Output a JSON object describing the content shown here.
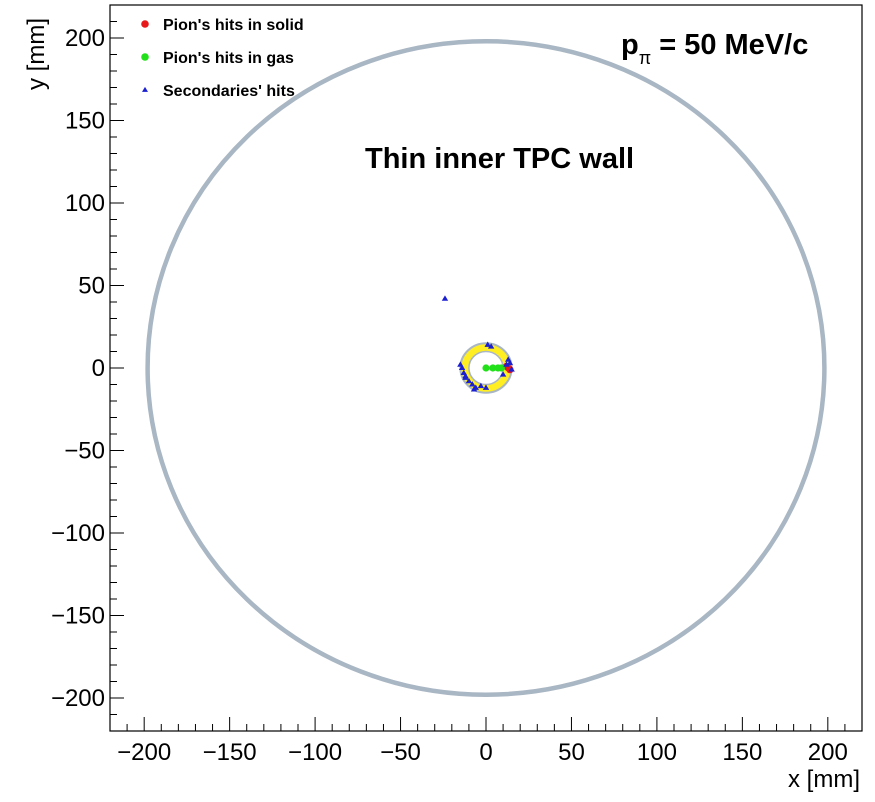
{
  "chart_data": {
    "type": "scatter",
    "xlabel": "x [mm]",
    "ylabel": "y [mm]",
    "xlim": [
      -220,
      220
    ],
    "ylim": [
      -220,
      220
    ],
    "x_ticks": [
      -200,
      -150,
      -100,
      -50,
      0,
      50,
      100,
      150,
      200
    ],
    "y_ticks": [
      -200,
      -150,
      -100,
      -50,
      0,
      50,
      100,
      150,
      200
    ],
    "x_tick_labels": [
      "−200",
      "−150",
      "−100",
      "−50",
      "0",
      "50",
      "100",
      "150",
      "200"
    ],
    "y_tick_labels": [
      "−200",
      "−150",
      "−100",
      "−50",
      "0",
      "50",
      "100",
      "150",
      "200"
    ],
    "annotations": {
      "momentum": {
        "p": "p",
        "sub": "π",
        "rest": " = 50 MeV/c"
      },
      "wall_label": "Thin inner TPC wall"
    },
    "legend_position": "top-left",
    "legend": [
      {
        "label": "Pion's hits in solid",
        "color": "#e8191b",
        "marker": "circle"
      },
      {
        "label": "Pion's hits in gas",
        "color": "#22e11a",
        "marker": "circle"
      },
      {
        "label": "Secondaries' hits",
        "color": "#1a1fd0",
        "marker": "triangle"
      }
    ],
    "shapes": {
      "outer_circle": {
        "cx": 0,
        "cy": 0,
        "r": 198,
        "color": "#a9b6c3"
      },
      "inner_ring": {
        "cx": 0,
        "cy": 0,
        "r_outer": 15,
        "r_inner": 10,
        "fill": "#ffee22",
        "edge": "#a9b6c3"
      }
    },
    "series": [
      {
        "name": "Pion's hits in solid",
        "color": "#e8191b",
        "marker": "circle",
        "points": [
          [
            13,
            0
          ],
          [
            14,
            -1
          ],
          [
            12,
            1
          ]
        ]
      },
      {
        "name": "Pion's hits in gas",
        "color": "#22e11a",
        "marker": "circle",
        "points": [
          [
            0,
            0
          ],
          [
            4,
            0
          ],
          [
            7,
            0
          ],
          [
            9,
            0
          ]
        ]
      },
      {
        "name": "Secondaries' hits",
        "color": "#1a1fd0",
        "marker": "triangle",
        "points": [
          [
            -24,
            42
          ],
          [
            1,
            14
          ],
          [
            3,
            13
          ],
          [
            14,
            3
          ],
          [
            13,
            5
          ],
          [
            15,
            -1
          ],
          [
            -14,
            0
          ],
          [
            -13,
            -3
          ],
          [
            -12,
            -5
          ],
          [
            -15,
            2
          ],
          [
            -10,
            -8
          ],
          [
            -8,
            -10
          ],
          [
            -6,
            -12
          ],
          [
            -3,
            -11
          ],
          [
            0,
            -12
          ],
          [
            -7,
            -13
          ],
          [
            -12,
            -6
          ],
          [
            10,
            -4
          ],
          [
            12,
            2
          ]
        ]
      }
    ]
  }
}
